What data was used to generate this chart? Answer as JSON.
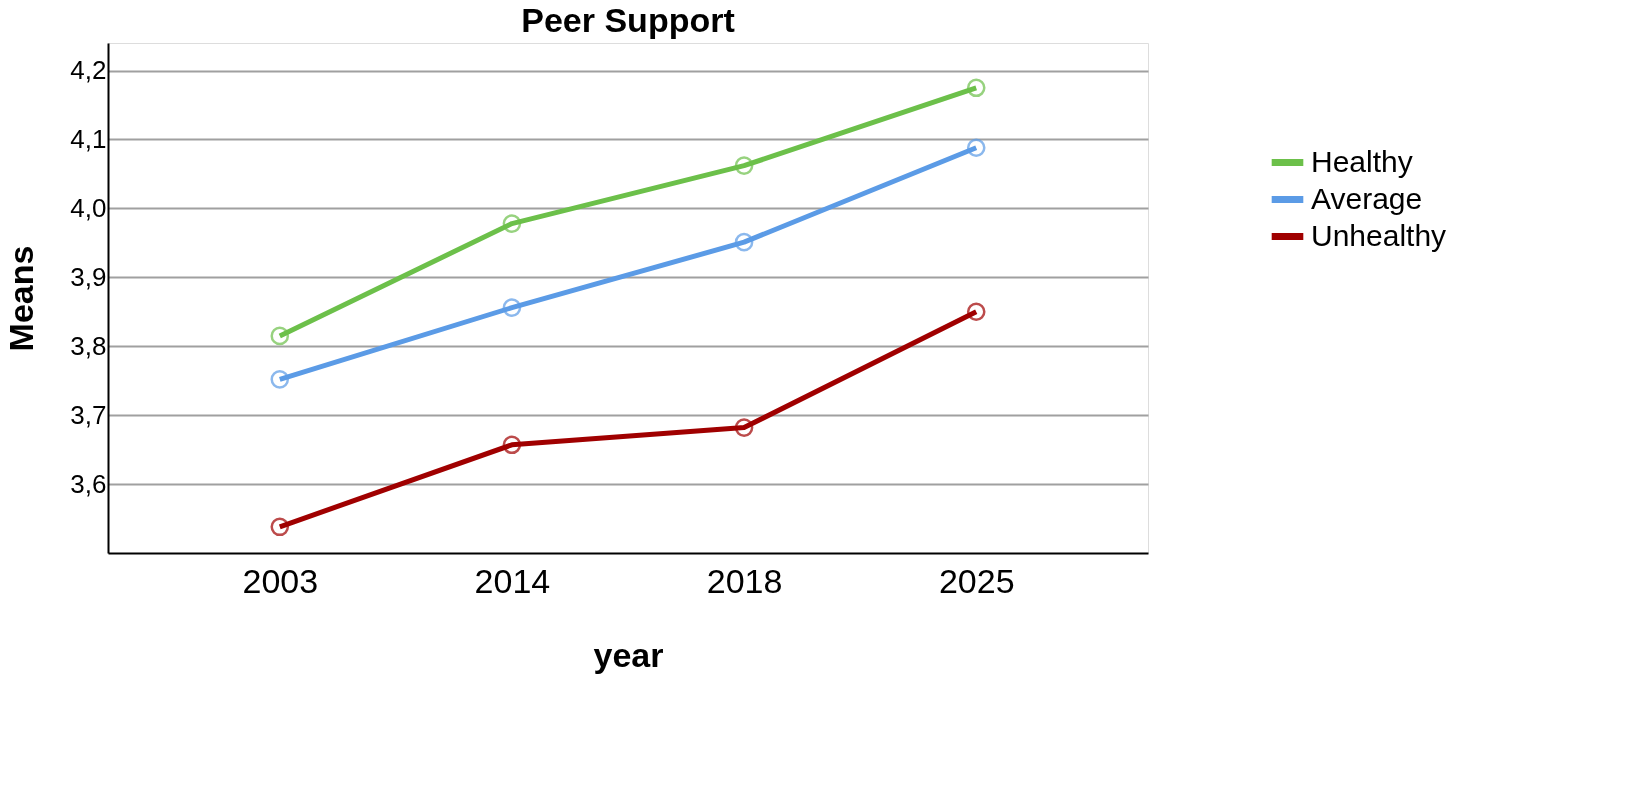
{
  "chart_data": {
    "type": "line",
    "title": "Peer Support",
    "xlabel": "year",
    "ylabel": "Means",
    "categories": [
      "2003",
      "2014",
      "2018",
      "2025"
    ],
    "series": [
      {
        "name": "Healthy",
        "color": "#6cc04a",
        "values": [
          3.815,
          3.978,
          4.062,
          4.175
        ]
      },
      {
        "name": "Average",
        "color": "#5b9be6",
        "values": [
          3.752,
          3.856,
          3.951,
          4.088
        ]
      },
      {
        "name": "Unhealthy",
        "color": "#a00000",
        "values": [
          3.538,
          3.657,
          3.682,
          3.85
        ]
      }
    ],
    "ylim": [
      3.5,
      4.24
    ],
    "yticks": [
      {
        "value": 3.6,
        "label": "3,6"
      },
      {
        "value": 3.7,
        "label": "3,7"
      },
      {
        "value": 3.8,
        "label": "3,8"
      },
      {
        "value": 3.9,
        "label": "3,9"
      },
      {
        "value": 4.0,
        "label": "4,0"
      },
      {
        "value": 4.1,
        "label": "4,1"
      },
      {
        "value": 4.2,
        "label": "4,2"
      }
    ],
    "grid": "y",
    "legend": "right",
    "marker": "circle",
    "line_style": "solid"
  }
}
